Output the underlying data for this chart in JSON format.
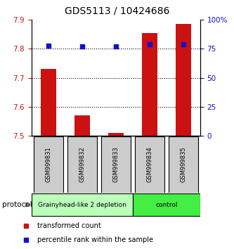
{
  "title": "GDS5113 / 10424686",
  "samples": [
    "GSM999831",
    "GSM999832",
    "GSM999833",
    "GSM999834",
    "GSM999835"
  ],
  "bar_values": [
    7.73,
    7.57,
    7.51,
    7.855,
    7.885
  ],
  "bar_base": 7.5,
  "percentile_values": [
    78.0,
    77.0,
    77.0,
    79.0,
    79.0
  ],
  "left_ylim": [
    7.5,
    7.9
  ],
  "right_ylim": [
    0,
    100
  ],
  "left_yticks": [
    7.5,
    7.6,
    7.7,
    7.8,
    7.9
  ],
  "right_yticks": [
    0,
    25,
    50,
    75,
    100
  ],
  "right_yticklabels": [
    "0",
    "25",
    "50",
    "75",
    "100%"
  ],
  "bar_color": "#cc1111",
  "scatter_color": "#1111cc",
  "gridline_ticks": [
    7.6,
    7.7,
    7.8
  ],
  "protocol_groups": [
    {
      "label": "Grainyhead-like 2 depletion",
      "samples_idx": [
        0,
        1,
        2
      ],
      "color": "#bbffbb"
    },
    {
      "label": "control",
      "samples_idx": [
        3,
        4
      ],
      "color": "#44ee44"
    }
  ],
  "legend_items": [
    {
      "label": "transformed count",
      "color": "#cc1111"
    },
    {
      "label": "percentile rank within the sample",
      "color": "#1111cc"
    }
  ],
  "protocol_label": "protocol",
  "bg_color": "#ffffff",
  "sample_box_color": "#cccccc",
  "title_fontsize": 10,
  "tick_fontsize": 7.5,
  "sample_fontsize": 6,
  "proto_fontsize": 6.5,
  "legend_fontsize": 7
}
